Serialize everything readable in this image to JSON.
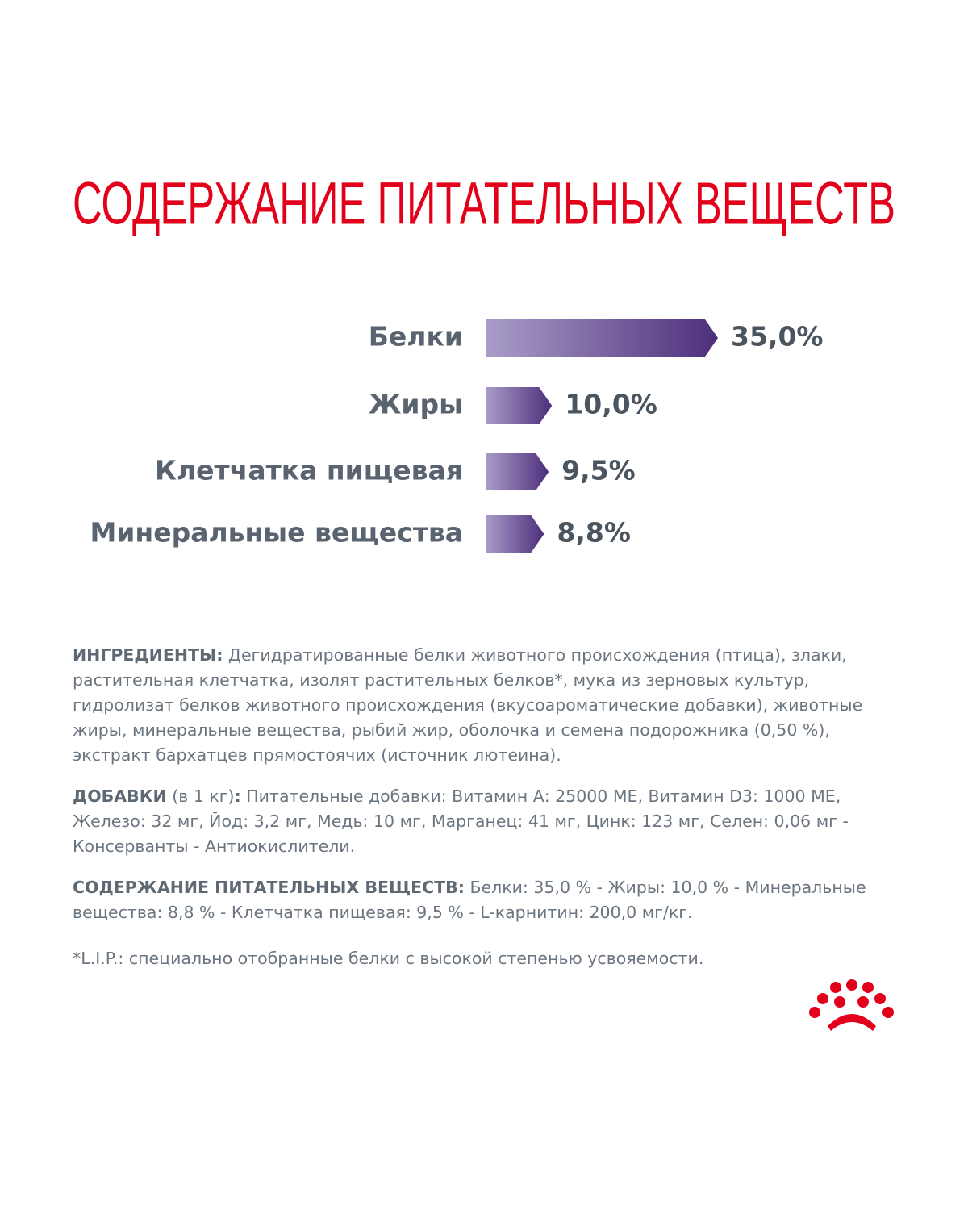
{
  "chart_data": {
    "type": "bar",
    "orientation": "horizontal",
    "title": "СОДЕРЖАНИЕ ПИТАТЕЛЬНЫХ ВЕЩЕСТВ",
    "categories": [
      "Белки",
      "Жиры",
      "Клетчатка пищевая",
      "Минеральные вещества"
    ],
    "values": [
      35.0,
      10.0,
      9.5,
      8.8
    ],
    "value_labels": [
      "35,0%",
      "10,0%",
      "9,5%",
      "8,8%"
    ],
    "gradient": [
      "#aa9dc8",
      "#4d2e7c"
    ],
    "title_color": "#e2001a"
  },
  "paragraphs": [
    {
      "runs": [
        {
          "text": "ИНГРЕДИЕНТЫ:",
          "bold": true
        },
        {
          "text": " Дегидратированные белки животного происхождения (птица), злаки, растительная клетчатка, изолят растительных белков*, мука из зерновых культур, гидролизат белков животного происхождения (вкусоароматические добавки), животные жиры, минеральные вещества, рыбий жир, оболочка и семена подорожника (0,50 %), экстракт бархатцев прямостоячих (источник лютеина)."
        }
      ]
    },
    {
      "runs": [
        {
          "text": "ДОБАВКИ",
          "bold": true
        },
        {
          "text": " (в 1 кг)"
        },
        {
          "text": ":",
          "bold": true
        },
        {
          "text": " Питательные добавки: Витамин А: 25000 МЕ, Витамин D3: 1000 МЕ, Железо: 32 мг, Йод: 3,2 мг, Медь: 10 мг, Марганец: 41 мг, Цинк: 123 мг, Селен: 0,06 мг - Консерванты - Антиокислители."
        }
      ]
    },
    {
      "runs": [
        {
          "text": "СОДЕРЖАНИЕ ПИТАТЕЛЬНЫХ ВЕЩЕСТВ:",
          "bold": true
        },
        {
          "text": " Белки: 35,0 % - Жиры: 10,0 % - Минеральные вещества: 8,8 % - Клетчатка пищевая: 9,5 % - L-карнитин: 200,0 мг/кг."
        }
      ]
    },
    {
      "runs": [
        {
          "text": "*L.I.P.: специально отобранные белки с высокой степенью усвояемости."
        }
      ]
    }
  ]
}
